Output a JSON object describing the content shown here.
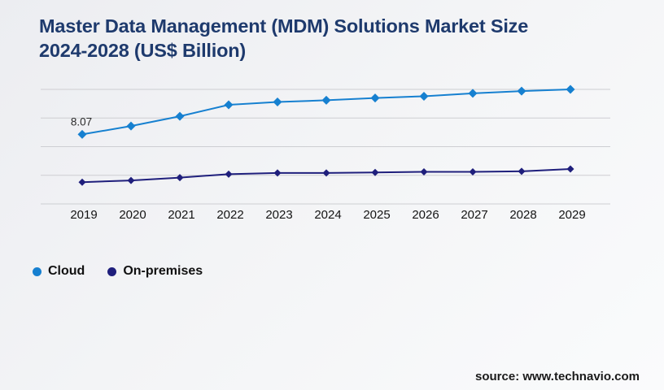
{
  "header": {
    "title_line1": "Master Data Management (MDM) Solutions Market Size",
    "title_line2": "2024-2028 (US$ Billion)",
    "title_color": "#1e3a6d"
  },
  "chart_data": {
    "type": "line",
    "title": "Master Data Management (MDM) Solutions Market Size 2024-2028 (US$ Billion)",
    "x": [
      "2019",
      "2020",
      "2021",
      "2022",
      "2023",
      "2024",
      "2025",
      "2026",
      "2027",
      "2028",
      "2029"
    ],
    "series": [
      {
        "name": "Cloud",
        "color": "#1680d0",
        "marker": "diamond",
        "marker_size": 11,
        "values": [
          8.07,
          8.8,
          9.65,
          10.65,
          10.9,
          11.05,
          11.25,
          11.4,
          11.65,
          11.85,
          12.0
        ]
      },
      {
        "name": "On-premises",
        "color": "#1f1f7c",
        "marker": "diamond",
        "marker_size": 9,
        "values": [
          3.9,
          4.05,
          4.3,
          4.6,
          4.7,
          4.7,
          4.75,
          4.8,
          4.8,
          4.85,
          5.05
        ]
      }
    ],
    "point_labels": [
      {
        "series": "Cloud",
        "x": "2019",
        "text": "8.07"
      }
    ],
    "yaxis": {
      "labels_visible": false,
      "ylim": [
        2,
        12
      ],
      "gridline_count": 5
    },
    "xaxis": {
      "labels_visible": true
    },
    "grid": true,
    "legend_position": "bottom-left"
  },
  "legend": {
    "items": [
      {
        "label": "Cloud",
        "color": "#1680d0"
      },
      {
        "label": "On-premises",
        "color": "#1f1f7c"
      }
    ]
  },
  "footer": {
    "source": "source: www.technavio.com"
  },
  "style": {
    "gridline_color": "#cdced2",
    "axis_label_color": "#141414",
    "point_label_color": "#2b2b2b",
    "background_start": "#ecedf1",
    "background_end": "#fbfbfc"
  }
}
